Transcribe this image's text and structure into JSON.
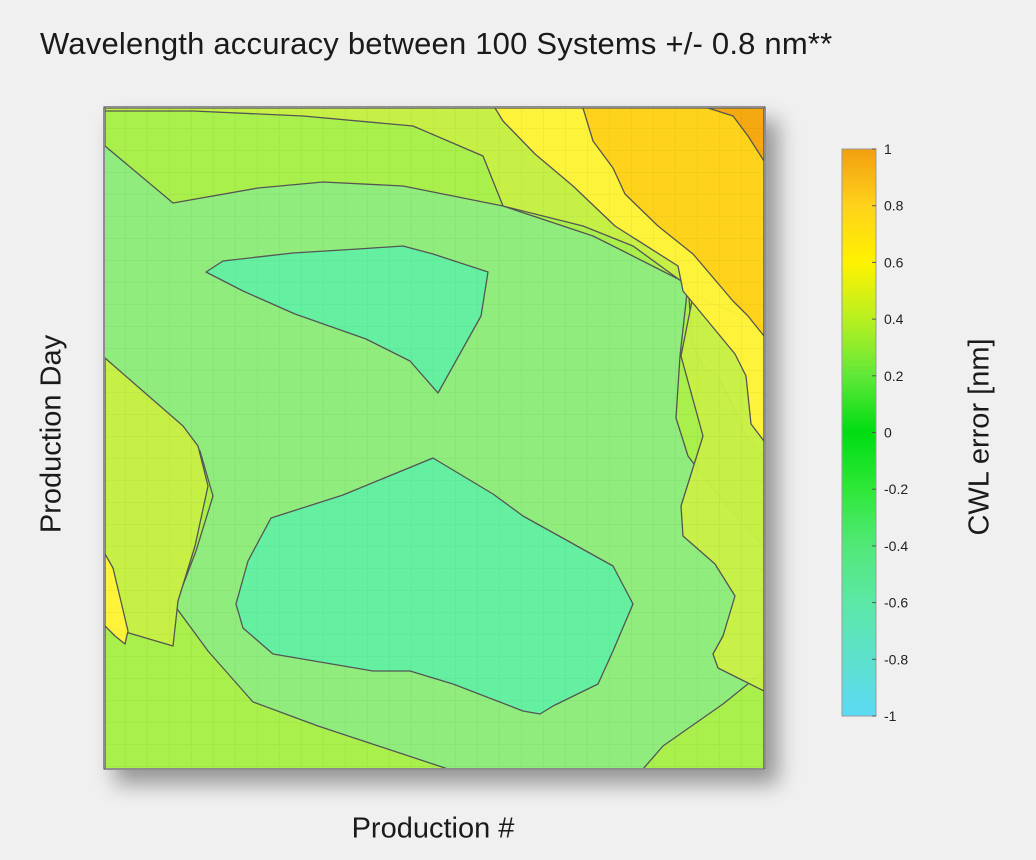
{
  "chart_data": {
    "type": "heatmap",
    "subtype": "filled-contour",
    "title": "Wavelength accuracy between 100 Systems +/- 0.8 nm**",
    "xlabel": "Production #",
    "ylabel": "Production Day",
    "x_ticks": [],
    "y_ticks": [],
    "grid": true,
    "colorbar": {
      "label": "CWL error [nm]",
      "range": [
        -1,
        1
      ],
      "ticks": [
        1,
        0.8,
        0.6,
        0.4,
        0.2,
        0,
        -0.2,
        -0.4,
        -0.6,
        -0.8,
        -1
      ],
      "tick_labels": [
        "1",
        "0.8",
        "0.6",
        "0.4",
        "0.2",
        "0",
        "-0.2",
        "-0.4",
        "-0.6",
        "-0.8",
        "-1"
      ],
      "colors": [
        {
          "value": 1,
          "color": "#f29f10"
        },
        {
          "value": 0.8,
          "color": "#ffd21a"
        },
        {
          "value": 0.6,
          "color": "#fff200"
        },
        {
          "value": 0.4,
          "color": "#b8f020"
        },
        {
          "value": 0.2,
          "color": "#60e838"
        },
        {
          "value": 0,
          "color": "#00dd12"
        },
        {
          "value": -0.2,
          "color": "#2ee838"
        },
        {
          "value": -0.4,
          "color": "#52e878"
        },
        {
          "value": -0.6,
          "color": "#5ce8a6"
        },
        {
          "value": -0.8,
          "color": "#5de0cc"
        },
        {
          "value": -1,
          "color": "#5cd9f5"
        }
      ]
    },
    "contour_levels": [
      {
        "level": 0.45,
        "color": "#a9f04a"
      },
      {
        "level": 0.55,
        "color": "#c8f046"
      },
      {
        "level": 0.65,
        "color": "#fff33a"
      },
      {
        "level": 0.8,
        "color": "#ffd21a"
      },
      {
        "level": 0.95,
        "color": "#f5a610"
      }
    ],
    "base_level": {
      "level": 0.35,
      "color": "#90ed7d"
    },
    "minima_level": {
      "level": 0.25,
      "color": "#63efa2"
    }
  }
}
